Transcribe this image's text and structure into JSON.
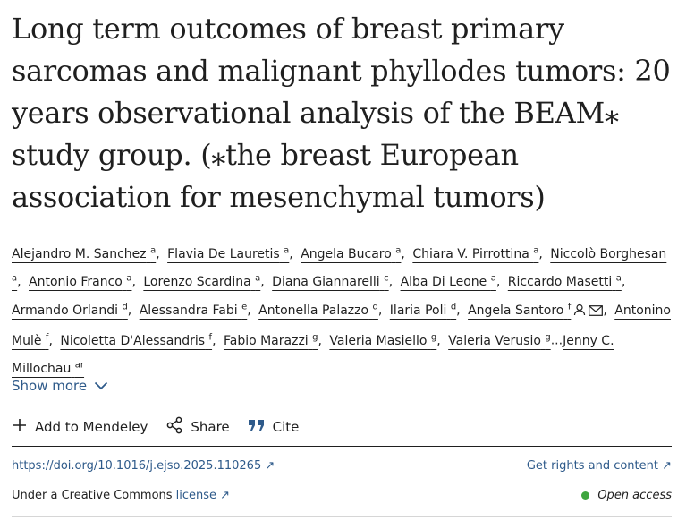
{
  "article": {
    "title": "Long term outcomes of breast primary sarcomas and malignant phyllodes tumors: 20 years observational analysis of the BEAM⁎ study group. (⁎the breast European association for mesenchymal tumors)"
  },
  "authors": [
    {
      "name": "Alejandro M. Sanchez",
      "sup": "a"
    },
    {
      "name": "Flavia De Lauretis",
      "sup": "a"
    },
    {
      "name": "Angela Bucaro",
      "sup": "a"
    },
    {
      "name": "Chiara V. Pirrottina",
      "sup": "a"
    },
    {
      "name": "Niccolò Borghesan",
      "sup": "a"
    },
    {
      "name": "Antonio Franco",
      "sup": "a"
    },
    {
      "name": "Lorenzo Scardina",
      "sup": "a"
    },
    {
      "name": "Diana Giannarelli",
      "sup": "c"
    },
    {
      "name": "Alba Di Leone",
      "sup": "a"
    },
    {
      "name": "Riccardo Masetti",
      "sup": "a"
    },
    {
      "name": "Armando Orlandi",
      "sup": "d"
    },
    {
      "name": "Alessandra Fabi",
      "sup": "e"
    },
    {
      "name": "Antonella Palazzo",
      "sup": "d"
    },
    {
      "name": "Ilaria Poli",
      "sup": "d"
    },
    {
      "name": "Angela Santoro",
      "sup": "f"
    },
    {
      "name": "Antonino Mulè",
      "sup": "f"
    },
    {
      "name": "Nicoletta D'Alessandris",
      "sup": "f"
    },
    {
      "name": "Fabio Marazzi",
      "sup": "g"
    },
    {
      "name": "Valeria Masiello",
      "sup": "g"
    },
    {
      "name": "Valeria Verusio",
      "sup": "g"
    },
    {
      "name": "Jenny C. Millochau",
      "sup": "ar"
    }
  ],
  "ellipsis": "...",
  "show_more": "Show more",
  "actions": {
    "mendeley": "Add to Mendeley",
    "share": "Share",
    "cite": "Cite"
  },
  "links": {
    "doi": "https://doi.org/10.1016/j.ejso.2025.110265 ↗",
    "rights": "Get rights and content ↗",
    "license_prefix": "Under a Creative Commons ",
    "license_link": "license ↗",
    "open_access": "Open access"
  },
  "colors": {
    "link": "#2e5a8a",
    "open_access_dot": "#3fa63f"
  }
}
